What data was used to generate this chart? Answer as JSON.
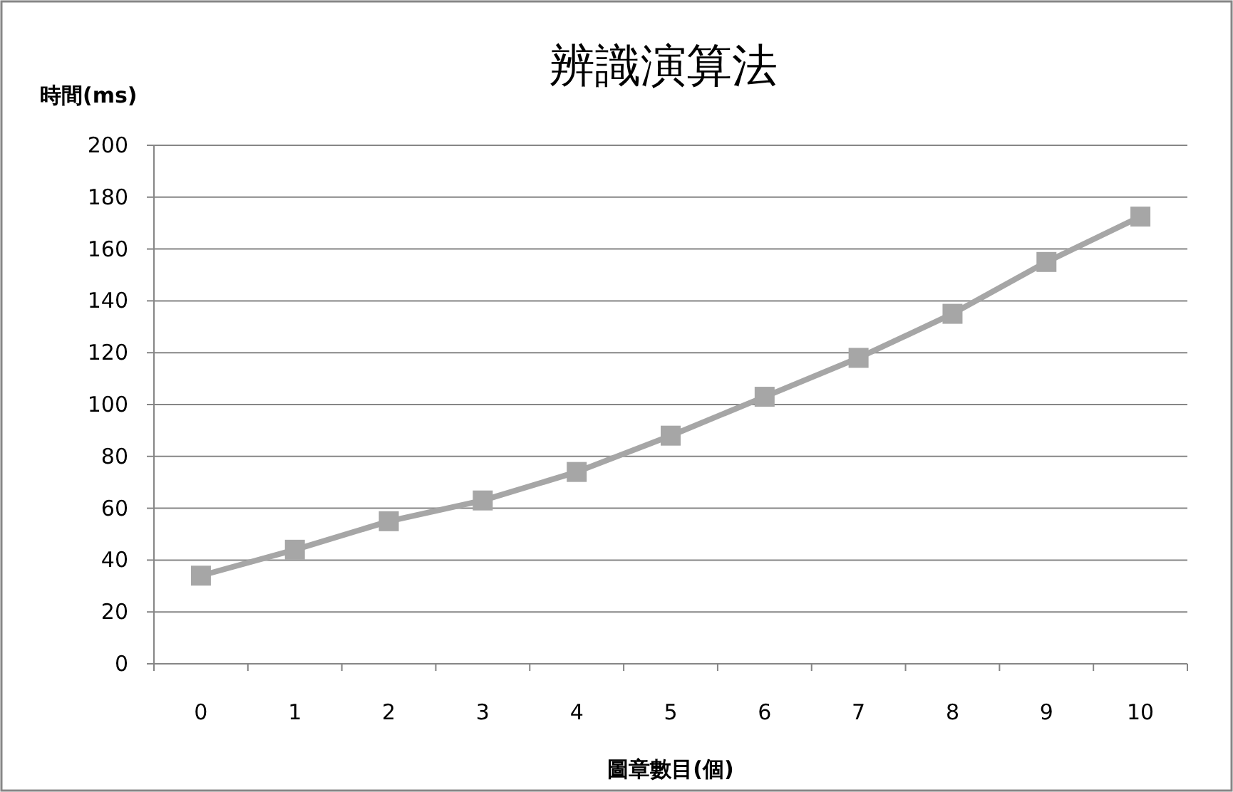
{
  "chart_data": {
    "type": "line",
    "title": "辨識演算法",
    "xlabel": "圖章數目(個)",
    "ylabel": "時間(ms)",
    "categories": [
      "0",
      "1",
      "2",
      "3",
      "4",
      "5",
      "6",
      "7",
      "8",
      "9",
      "10"
    ],
    "series": [
      {
        "color": "#a6a6a6",
        "values": [
          34,
          44,
          55,
          63,
          74,
          88,
          103,
          118,
          135,
          155,
          172.5
        ]
      }
    ],
    "ylim": [
      0,
      200
    ],
    "yticks": [
      0,
      20,
      40,
      60,
      80,
      100,
      120,
      140,
      160,
      180,
      200
    ],
    "grid": "y",
    "marker": "square",
    "line_style": "solid"
  }
}
